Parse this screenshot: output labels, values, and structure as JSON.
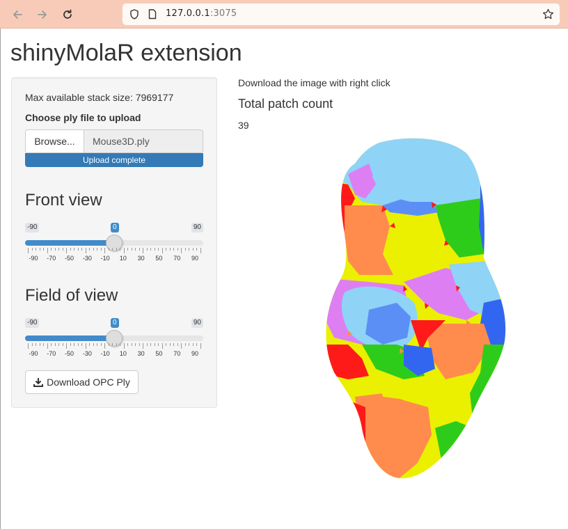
{
  "browser": {
    "url_host": "127.0.0.1",
    "url_port": ":3075"
  },
  "page": {
    "title": "shinyMolaR extension"
  },
  "sidebar": {
    "stack_size_text": "Max available stack size: 7969177",
    "file_label": "Choose ply file to upload",
    "browse_label": "Browse...",
    "file_name": "Mouse3D.ply",
    "upload_status": "Upload complete",
    "upload_progress": 1.0,
    "front_view": {
      "title": "Front view",
      "min": -90,
      "max": 90,
      "value": 0,
      "min_label": "-90",
      "max_label": "90",
      "value_label": "0",
      "tick_labels": [
        "-90",
        "-70",
        "-50",
        "-30",
        "-10",
        "10",
        "30",
        "50",
        "70",
        "90"
      ]
    },
    "field_of_view": {
      "title": "Field of view",
      "min": -90,
      "max": 90,
      "value": 0,
      "min_label": "-90",
      "max_label": "90",
      "value_label": "0",
      "tick_labels": [
        "-90",
        "-70",
        "-50",
        "-30",
        "-10",
        "10",
        "30",
        "50",
        "70",
        "90"
      ]
    },
    "download_label": "Download OPC Ply"
  },
  "main": {
    "note": "Download the image with right click",
    "patch_title": "Total patch count",
    "patch_count": "39"
  },
  "colors": {
    "accent": "#428bca",
    "progress": "#337ab7",
    "patch_colors": [
      "#8fd3f7",
      "#5c8ff5",
      "#3366f0",
      "#2ecc1a",
      "#f0f000",
      "#ff8c4d",
      "#ff1a1a",
      "#dd7ff2"
    ]
  }
}
